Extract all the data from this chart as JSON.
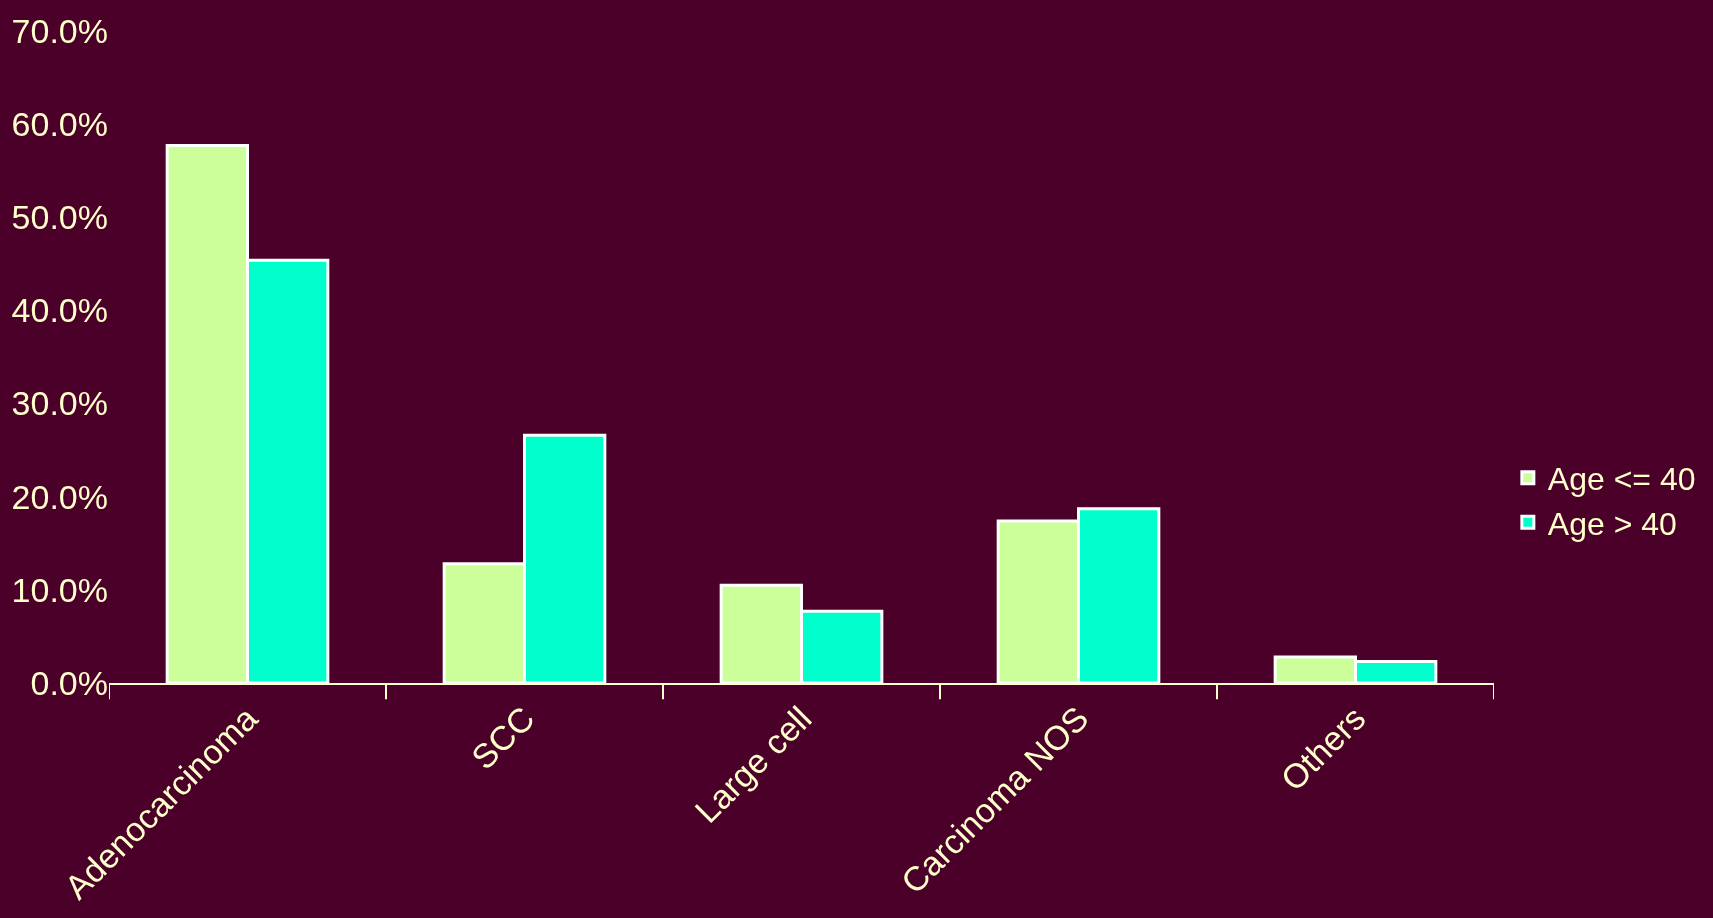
{
  "chart_data": {
    "type": "bar",
    "categories": [
      "Adenocarcinoma",
      "SCC",
      "Large cell",
      "Carcinoma NOS",
      "Others"
    ],
    "series": [
      {
        "name": "Age <= 40",
        "color": "#ccff99",
        "values": [
          57.7,
          12.8,
          10.5,
          17.4,
          2.8
        ]
      },
      {
        "name": "Age > 40",
        "color": "#00ffcc",
        "values": [
          45.4,
          26.6,
          7.7,
          18.7,
          2.3
        ]
      }
    ],
    "ylim": [
      0,
      70
    ],
    "yticks": [
      {
        "value": 0,
        "label": "0.0%"
      },
      {
        "value": 10,
        "label": "10.0%"
      },
      {
        "value": 20,
        "label": "20.0%"
      },
      {
        "value": 30,
        "label": "30.0%"
      },
      {
        "value": 40,
        "label": "40.0%"
      },
      {
        "value": 50,
        "label": "50.0%"
      },
      {
        "value": 60,
        "label": "60.0%"
      },
      {
        "value": 70,
        "label": "70.0%"
      }
    ],
    "grid": false,
    "legend": "right"
  }
}
